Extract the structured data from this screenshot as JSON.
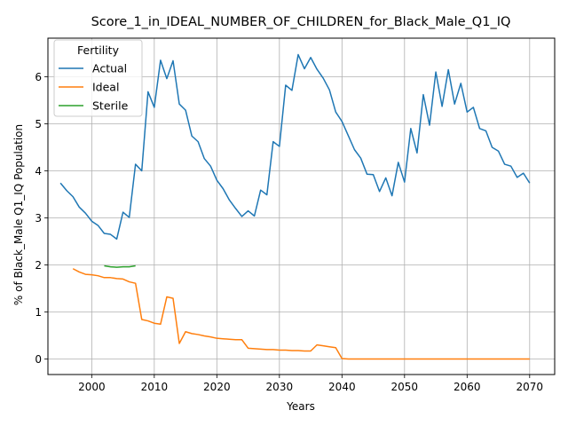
{
  "chart_data": {
    "type": "line",
    "title": "Score_1_in_IDEAL_NUMBER_OF_CHILDREN_for_Black_Male_Q1_IQ",
    "xlabel": "Years",
    "ylabel": "% of Black_Male Q1_IQ Population",
    "xlim": [
      1993,
      2074
    ],
    "ylim": [
      -0.33,
      6.82
    ],
    "xticks": [
      2000,
      2010,
      2020,
      2030,
      2040,
      2050,
      2060,
      2070
    ],
    "yticks": [
      0,
      1,
      2,
      3,
      4,
      5,
      6
    ],
    "grid": true,
    "legend": {
      "title": "Fertility",
      "placement": "top-left"
    },
    "series": [
      {
        "name": "Actual",
        "color": "#1f77b4",
        "x": [
          1995,
          1996,
          1997,
          1998,
          1999,
          2000,
          2001,
          2002,
          2003,
          2004,
          2005,
          2006,
          2007,
          2008,
          2009,
          2010,
          2011,
          2012,
          2013,
          2014,
          2015,
          2016,
          2017,
          2018,
          2019,
          2020,
          2021,
          2022,
          2023,
          2024,
          2025,
          2026,
          2027,
          2028,
          2029,
          2030,
          2031,
          2032,
          2033,
          2034,
          2035,
          2036,
          2037,
          2038,
          2039,
          2040,
          2041,
          2042,
          2043,
          2044,
          2045,
          2046,
          2047,
          2048,
          2049,
          2050,
          2051,
          2052,
          2053,
          2054,
          2055,
          2056,
          2057,
          2058,
          2059,
          2060,
          2061,
          2062,
          2063,
          2064,
          2065,
          2066,
          2067,
          2068,
          2069,
          2070
        ],
        "y": [
          3.74,
          3.58,
          3.45,
          3.23,
          3.1,
          2.93,
          2.84,
          2.67,
          2.65,
          2.55,
          3.12,
          3.01,
          4.14,
          4.0,
          5.68,
          5.35,
          6.35,
          5.96,
          6.34,
          5.42,
          5.29,
          4.74,
          4.62,
          4.26,
          4.1,
          3.8,
          3.62,
          3.38,
          3.2,
          3.03,
          3.15,
          3.04,
          3.59,
          3.49,
          4.62,
          4.52,
          5.82,
          5.71,
          6.47,
          6.17,
          6.41,
          6.16,
          5.97,
          5.72,
          5.25,
          5.05,
          4.75,
          4.45,
          4.27,
          3.93,
          3.92,
          3.56,
          3.85,
          3.47,
          4.18,
          3.76,
          4.9,
          4.38,
          5.62,
          4.97,
          6.1,
          5.37,
          6.15,
          5.42,
          5.86,
          5.25,
          5.35,
          4.9,
          4.85,
          4.5,
          4.42,
          4.14,
          4.1,
          3.86,
          3.95,
          3.74
        ]
      },
      {
        "name": "Ideal",
        "color": "#ff7f0e",
        "x": [
          1997,
          1998,
          1999,
          2000,
          2001,
          2002,
          2003,
          2004,
          2005,
          2006,
          2007,
          2008,
          2009,
          2010,
          2011,
          2012,
          2013,
          2014,
          2015,
          2016,
          2017,
          2018,
          2019,
          2020,
          2021,
          2022,
          2023,
          2024,
          2025,
          2026,
          2027,
          2028,
          2029,
          2030,
          2031,
          2032,
          2033,
          2034,
          2035,
          2036,
          2037,
          2038,
          2039,
          2040,
          2041,
          2042,
          2043,
          2044,
          2045,
          2046,
          2047,
          2048,
          2049,
          2050,
          2051,
          2052,
          2053,
          2054,
          2055,
          2056,
          2057,
          2058,
          2059,
          2060,
          2061,
          2062,
          2063,
          2064,
          2065,
          2066,
          2067,
          2068,
          2069,
          2070
        ],
        "y": [
          1.92,
          1.85,
          1.8,
          1.79,
          1.77,
          1.73,
          1.73,
          1.71,
          1.7,
          1.64,
          1.61,
          0.84,
          0.81,
          0.76,
          0.74,
          1.32,
          1.29,
          0.33,
          0.58,
          0.54,
          0.52,
          0.49,
          0.47,
          0.44,
          0.43,
          0.42,
          0.41,
          0.41,
          0.23,
          0.22,
          0.21,
          0.2,
          0.2,
          0.19,
          0.19,
          0.18,
          0.18,
          0.17,
          0.17,
          0.3,
          0.28,
          0.26,
          0.24,
          0.01,
          0.0,
          0.0,
          0.0,
          0.0,
          0.0,
          0.0,
          0.0,
          0.0,
          0.0,
          0.0,
          0.0,
          0.0,
          0.0,
          0.0,
          0.0,
          0.0,
          0.0,
          0.0,
          0.0,
          0.0,
          0.0,
          0.0,
          0.0,
          0.0,
          0.0,
          0.0,
          0.0,
          0.0,
          0.0,
          0.0
        ]
      },
      {
        "name": "Sterile",
        "color": "#2ca02c",
        "x": [
          2002,
          2003,
          2004,
          2005,
          2006,
          2007
        ],
        "y": [
          1.98,
          1.96,
          1.95,
          1.96,
          1.96,
          1.98
        ]
      }
    ]
  }
}
